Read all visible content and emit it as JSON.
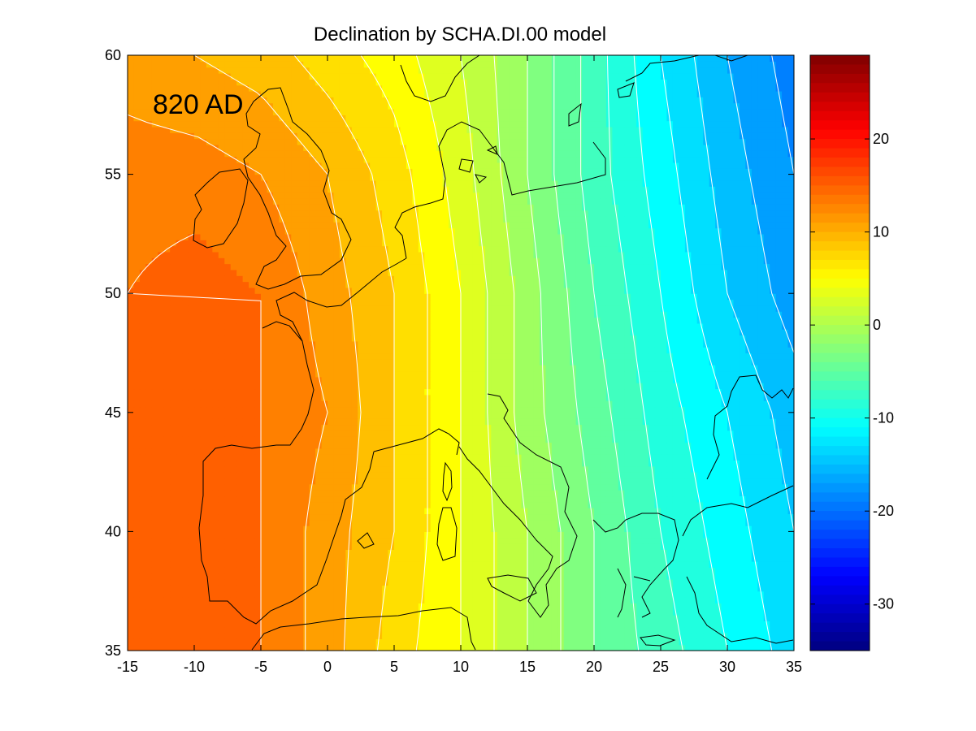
{
  "chart_data": {
    "type": "heatmap",
    "title": "Declination by SCHA.DI.00 model",
    "annotation": "820 AD",
    "xlim": [
      -15,
      35
    ],
    "ylim": [
      35,
      60
    ],
    "x_ticks": [
      -15,
      -10,
      -5,
      0,
      5,
      10,
      15,
      20,
      25,
      30,
      35
    ],
    "y_ticks": [
      35,
      40,
      45,
      50,
      55,
      60
    ],
    "colorbar": {
      "range": [
        -35,
        29
      ],
      "ticks": [
        20,
        10,
        0,
        -10,
        -20,
        -30
      ],
      "colormap": "jet"
    },
    "contour_interval": 2,
    "grid": false,
    "field_samples": {
      "x": [
        -15,
        -10,
        -5,
        0,
        5,
        10,
        15,
        20,
        25,
        30,
        35
      ],
      "rows": [
        {
          "y": 60,
          "values": [
            11,
            10,
            9,
            7,
            5,
            2,
            -2,
            -7,
            -12,
            -16,
            -19
          ]
        },
        {
          "y": 55,
          "values": [
            13,
            13,
            12,
            10,
            7,
            3,
            -2,
            -7,
            -11,
            -15,
            -18
          ]
        },
        {
          "y": 50,
          "values": [
            14,
            15,
            14,
            11,
            8,
            4,
            -1,
            -6,
            -10,
            -14,
            -17
          ]
        },
        {
          "y": 45,
          "values": [
            15,
            15,
            14,
            12,
            8,
            4,
            -1,
            -5,
            -9,
            -12,
            -15
          ]
        },
        {
          "y": 40,
          "values": [
            15,
            15,
            14,
            11,
            8,
            4,
            0,
            -4,
            -8,
            -11,
            -14
          ]
        },
        {
          "y": 35,
          "values": [
            15,
            15,
            14,
            11,
            7,
            4,
            0,
            -4,
            -7,
            -10,
            -13
          ]
        }
      ]
    }
  }
}
